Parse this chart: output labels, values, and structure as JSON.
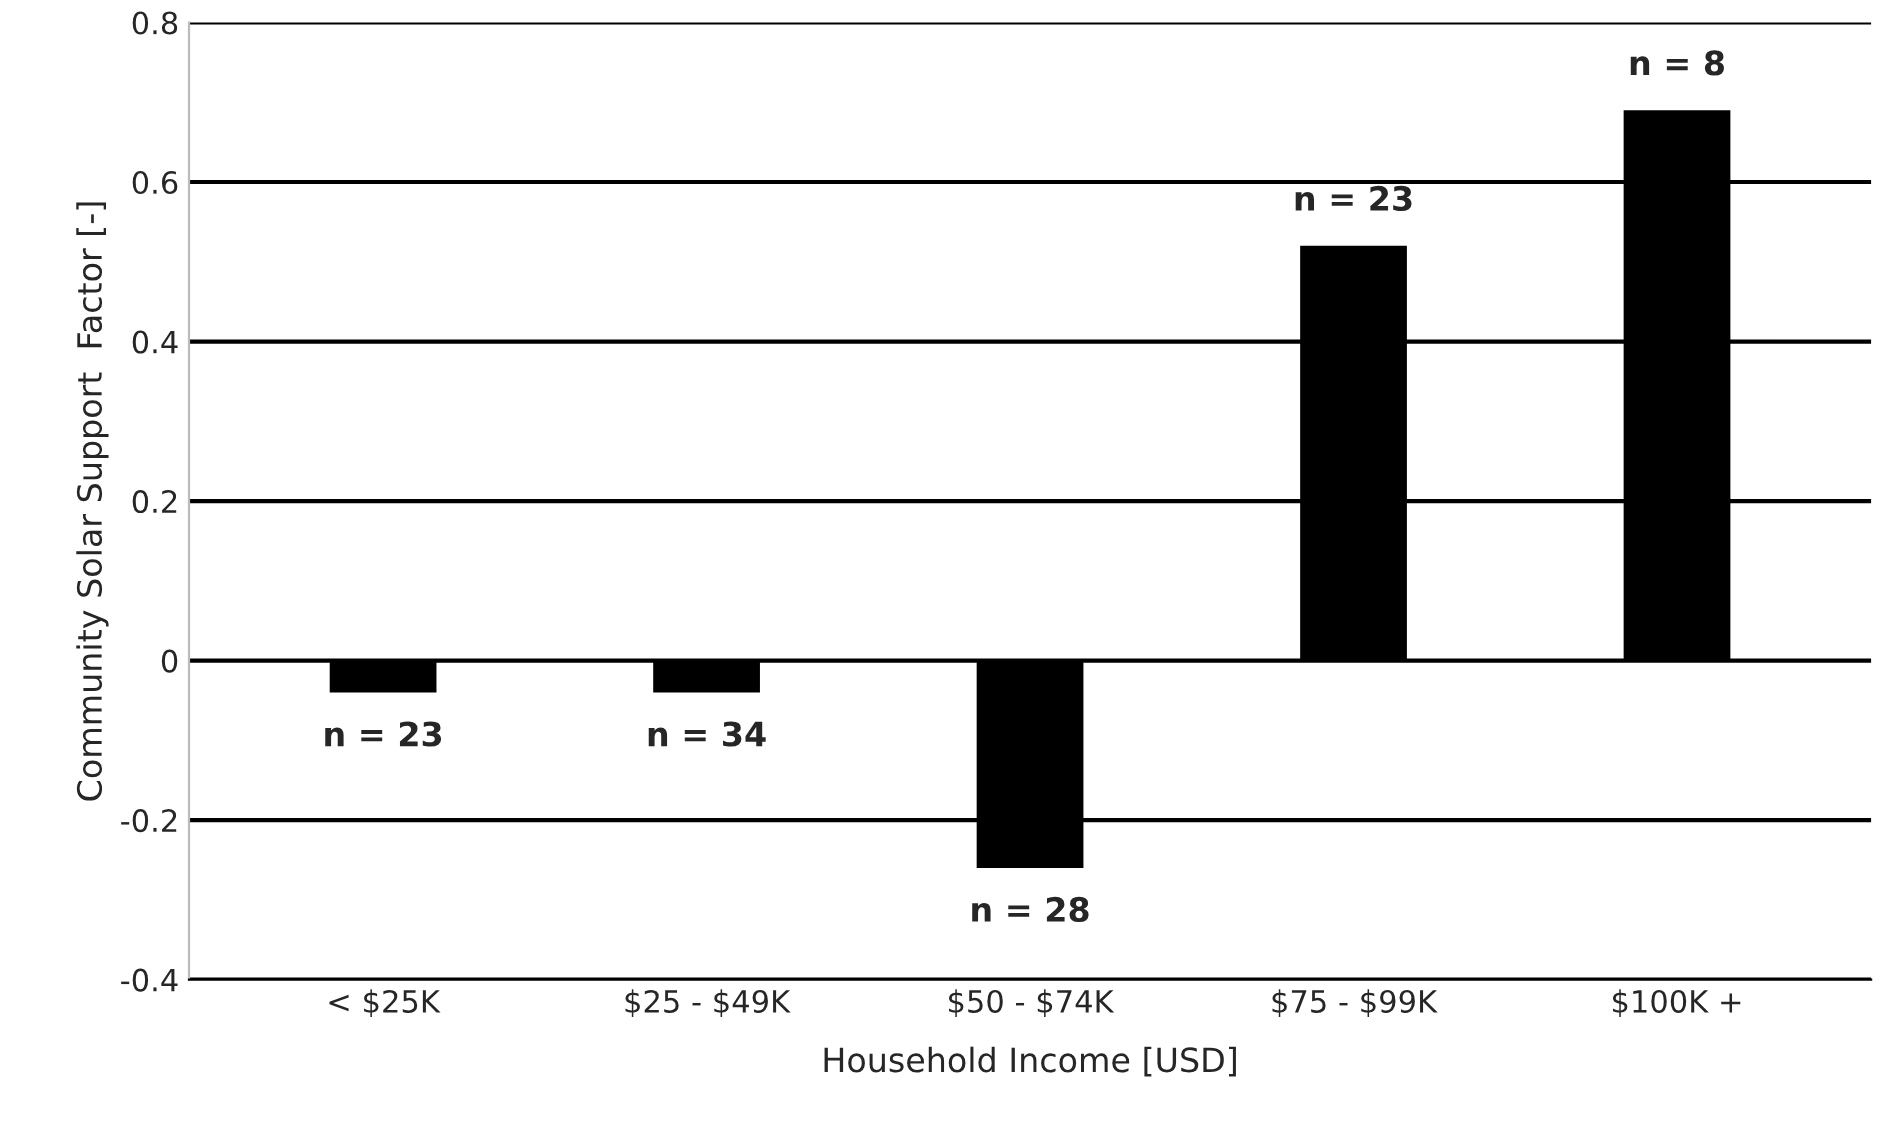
{
  "chart_data": {
    "type": "bar",
    "xlabel": "Household Income [USD]",
    "ylabel": "Community Solar Support  Factor [-]",
    "categories": [
      "< $25K",
      "$25 - $49K",
      "$50 - $74K",
      "$75 - $99K",
      "$100K +"
    ],
    "values": [
      -0.04,
      -0.04,
      -0.26,
      0.52,
      0.69
    ],
    "color": "#000000",
    "ylim": [
      -0.4,
      0.8
    ],
    "yticks": [
      -0.4,
      -0.2,
      0,
      0.2,
      0.4,
      0.6,
      0.8
    ],
    "grid": "y",
    "annotations": [
      "n = 23",
      "n = 34",
      "n = 28",
      "n = 23",
      "n = 8"
    ]
  }
}
